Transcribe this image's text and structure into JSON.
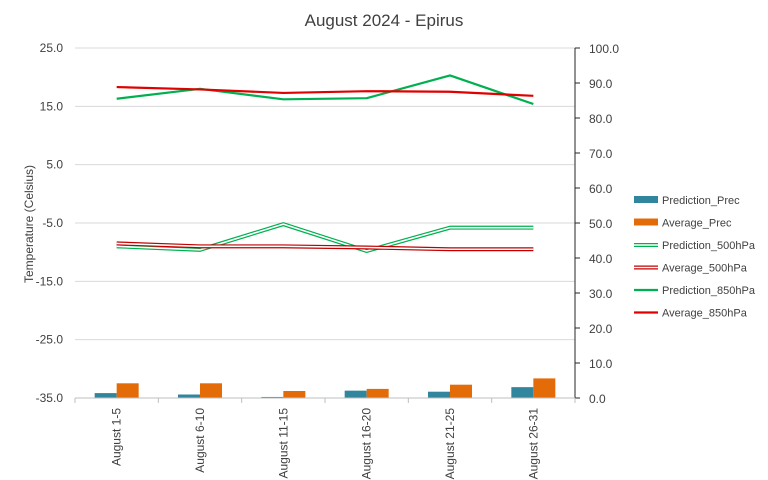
{
  "chart_data": {
    "type": "bar+line",
    "title": "August 2024 - Epirus",
    "ylabel_left": "Temperature (Celsius)",
    "ylabel_right": "",
    "xlabel": "",
    "categories": [
      "August 1-5",
      "August 6-10",
      "August 11-15",
      "August 16-20",
      "August 21-25",
      "August 26-31"
    ],
    "ylim_left": [
      -35,
      25
    ],
    "yticks_left": [
      "25.0",
      "15.0",
      "5.0",
      "-5.0",
      "-15.0",
      "-25.0",
      "-35.0"
    ],
    "ylim_right": [
      0,
      100
    ],
    "yticks_right": [
      "100.0",
      "90.0",
      "80.0",
      "70.0",
      "60.0",
      "50.0",
      "40.0",
      "30.0",
      "20.0",
      "10.0",
      "0.0"
    ],
    "grid": true,
    "legend_position": "right",
    "bar_series": [
      {
        "name": "Prediction_Prec",
        "axis": "right",
        "color": "#31859c",
        "values": [
          1.4,
          1.0,
          0.3,
          2.1,
          1.8,
          3.1
        ]
      },
      {
        "name": "Average_Prec",
        "axis": "right",
        "color": "#e36c09",
        "values": [
          4.2,
          4.2,
          2.0,
          2.6,
          3.8,
          5.6
        ]
      }
    ],
    "line_series": [
      {
        "name": "Prediction_500hPa",
        "axis": "left",
        "color": "#00b050",
        "style": "double",
        "values": [
          -9.0,
          -9.6,
          -5.2,
          -9.8,
          -5.8,
          -5.8
        ]
      },
      {
        "name": "Average_500hPa",
        "axis": "left",
        "color": "#c00000",
        "style": "double",
        "values": [
          -8.5,
          -9.0,
          -9.0,
          -9.2,
          -9.5,
          -9.5
        ]
      },
      {
        "name": "Prediction_850hPa",
        "axis": "left",
        "color": "#00b050",
        "style": "solid",
        "values": [
          16.3,
          18.0,
          16.2,
          16.4,
          20.3,
          15.4
        ]
      },
      {
        "name": "Average_850hPa",
        "axis": "left",
        "color": "#e00000",
        "style": "solid",
        "values": [
          18.3,
          17.9,
          17.3,
          17.6,
          17.5,
          16.8
        ]
      }
    ]
  }
}
